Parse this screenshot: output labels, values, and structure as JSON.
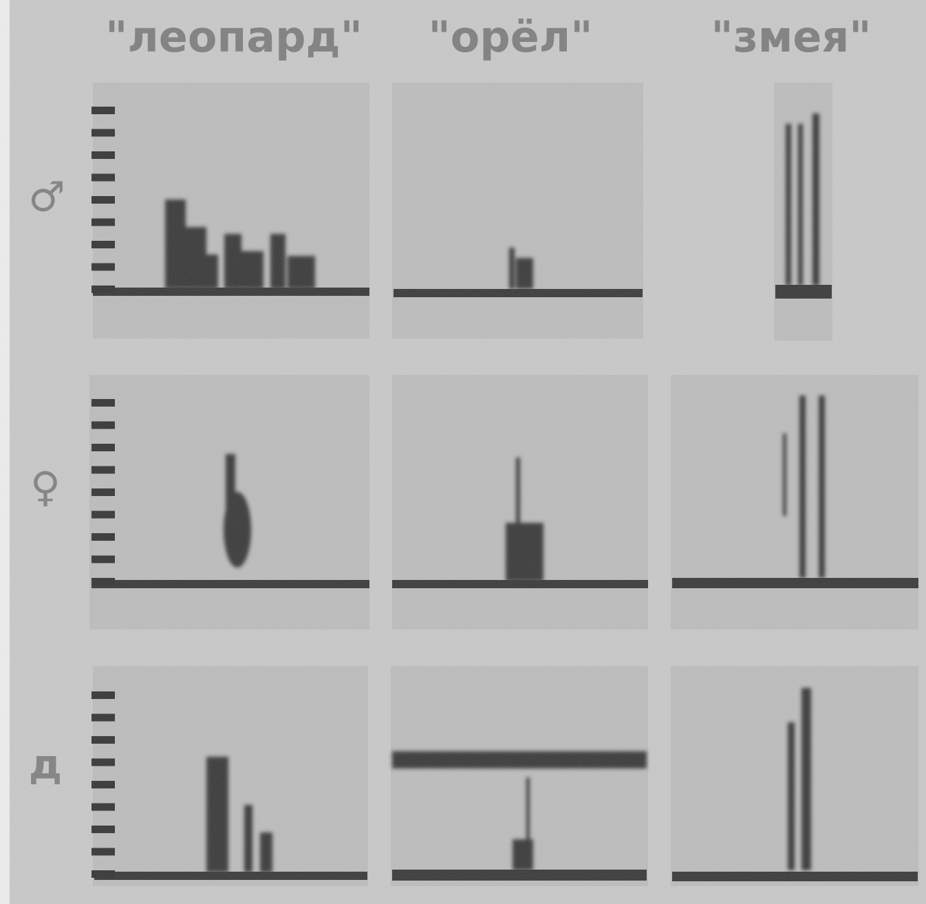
{
  "header": {
    "columns": [
      "\"леопард\"",
      "\"орёл\"",
      "\"змея\""
    ]
  },
  "rows": [
    {
      "label": "♂"
    },
    {
      "label": "♀"
    },
    {
      "label": "д"
    }
  ]
}
